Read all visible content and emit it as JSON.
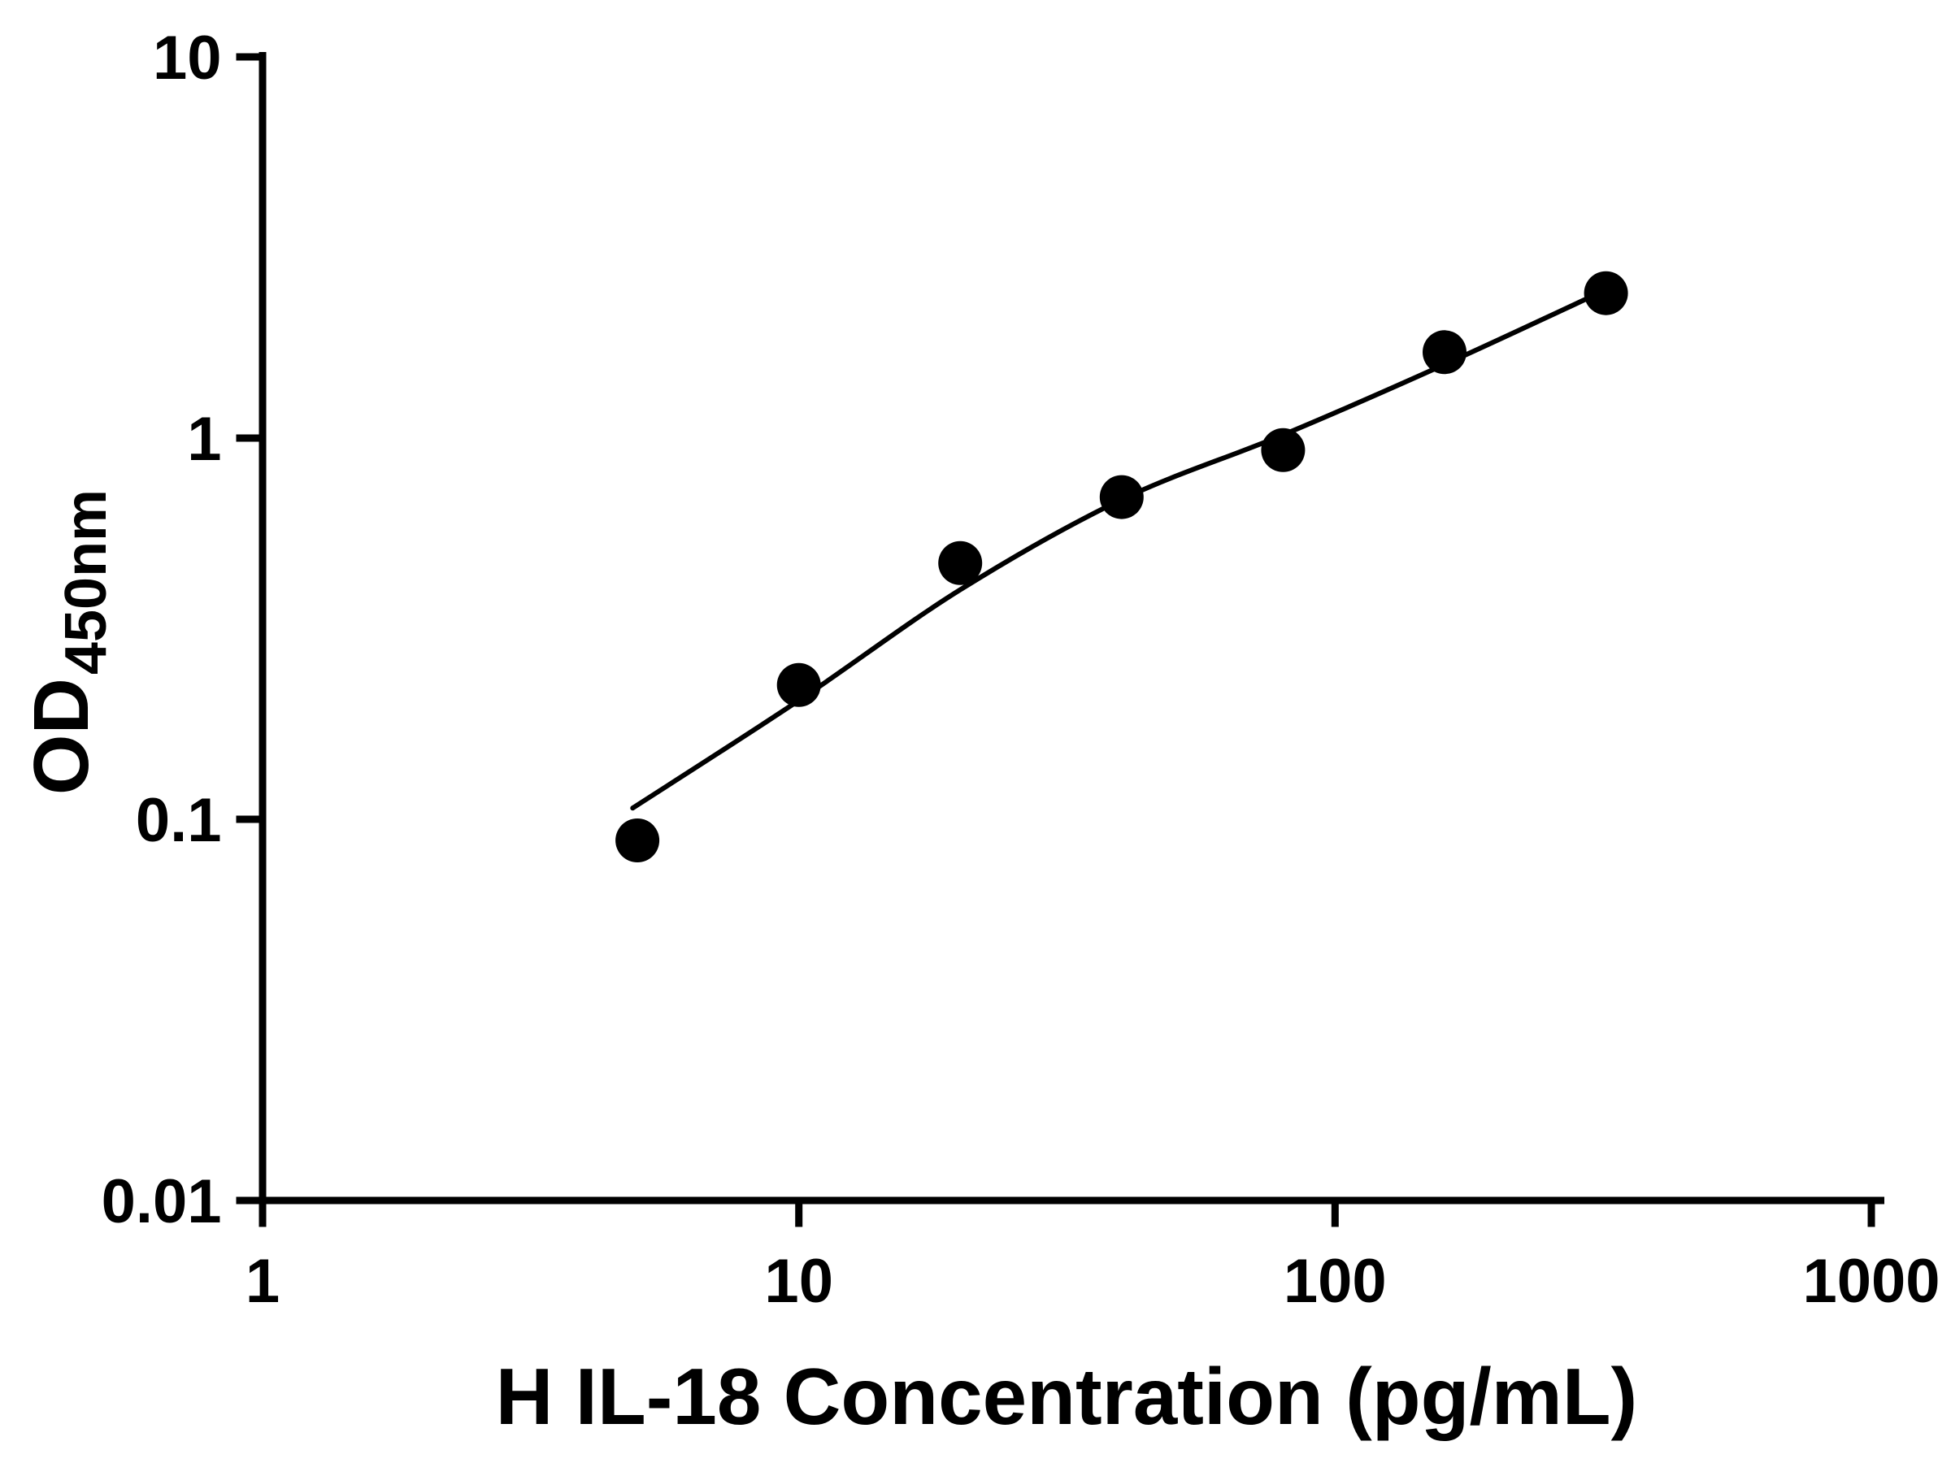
{
  "page": {
    "background": "#ffffff"
  },
  "chart_data": {
    "type": "scatter",
    "title": "",
    "xlabel": "H IL-18 Concentration (pg/mL)",
    "ylabel_main": "OD",
    "ylabel_sub": "450nm",
    "x_scale": "log",
    "y_scale": "log",
    "xlim": [
      1,
      1000
    ],
    "ylim": [
      0.01,
      10
    ],
    "x_ticks": [
      1,
      10,
      100,
      1000
    ],
    "x_tick_labels": [
      "1",
      "10",
      "100",
      "1000"
    ],
    "y_ticks": [
      0.01,
      0.1,
      1,
      10
    ],
    "y_tick_labels": [
      "0.01",
      "0.1",
      "1",
      "10"
    ],
    "grid": false,
    "legend": false,
    "marker_color": "#000000",
    "line_color": "#000000",
    "axis_color": "#000000",
    "points": [
      {
        "x": 5,
        "y": 0.088
      },
      {
        "x": 10,
        "y": 0.225
      },
      {
        "x": 20,
        "y": 0.47
      },
      {
        "x": 40,
        "y": 0.7
      },
      {
        "x": 80,
        "y": 0.93
      },
      {
        "x": 160,
        "y": 1.68
      },
      {
        "x": 320,
        "y": 2.4
      }
    ],
    "fit_curve": [
      {
        "x": 4.9,
        "y": 0.107
      },
      {
        "x": 10,
        "y": 0.205
      },
      {
        "x": 20,
        "y": 0.4
      },
      {
        "x": 40,
        "y": 0.69
      },
      {
        "x": 80,
        "y": 1.02
      },
      {
        "x": 160,
        "y": 1.56
      },
      {
        "x": 320,
        "y": 2.45
      }
    ]
  }
}
